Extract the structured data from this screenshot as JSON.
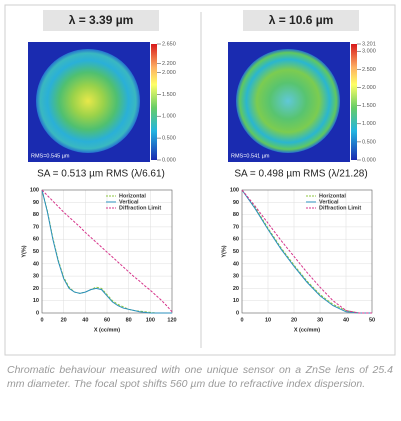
{
  "panels": [
    {
      "title": "λ = 3.39 µm",
      "rms_label": "RMS=0.545 µm",
      "sa": "SA = 0.513 µm RMS (λ/6.61)",
      "colorbar": {
        "lim": [
          0,
          2.65
        ],
        "ticks": [
          {
            "value": 2.65,
            "label": "2.650"
          },
          {
            "value": 2.2,
            "label": "2.200"
          },
          {
            "value": 2,
            "label": "2.000"
          },
          {
            "value": 1.5,
            "label": "1.500"
          },
          {
            "value": 1,
            "label": "1.000"
          },
          {
            "value": 0.5,
            "label": "0.500"
          },
          {
            "value": 0,
            "label": "0.000"
          }
        ]
      }
    },
    {
      "title": "λ = 10.6 µm",
      "rms_label": "RMS=0.541 µm",
      "sa": "SA = 0.498 µm RMS (λ/21.28)",
      "colorbar": {
        "lim": [
          0,
          3.201
        ],
        "ticks": [
          {
            "value": 3.201,
            "label": "3.201"
          },
          {
            "value": 3,
            "label": "3.000"
          },
          {
            "value": 2.5,
            "label": "2.500"
          },
          {
            "value": 2,
            "label": "2.000"
          },
          {
            "value": 1.5,
            "label": "1.500"
          },
          {
            "value": 1,
            "label": "1.000"
          },
          {
            "value": 0.5,
            "label": "0.500"
          },
          {
            "value": 0,
            "label": "0.000"
          }
        ]
      }
    }
  ],
  "chart_data": [
    {
      "type": "line",
      "x_label": "X (cc/mm)",
      "y_label": "Y(%)",
      "x": [
        0,
        5,
        10,
        15,
        20,
        25,
        30,
        35,
        40,
        45,
        50,
        55,
        60,
        65,
        70,
        75,
        80,
        85,
        90,
        95,
        100,
        105,
        110,
        115,
        120
      ],
      "xlim": [
        0,
        120
      ],
      "xticks": [
        0,
        20,
        40,
        60,
        80,
        100,
        120
      ],
      "ylim": [
        0,
        100
      ],
      "yticks": [
        0,
        10,
        20,
        30,
        40,
        50,
        60,
        70,
        80,
        90,
        100
      ],
      "grid": true,
      "legend": "upper right",
      "series": [
        {
          "name": "Horizontal",
          "color": "#8cc63f",
          "dash": true,
          "values": [
            100,
            83,
            61,
            43,
            29,
            21,
            17,
            16,
            17,
            19,
            21,
            20,
            15,
            10,
            7,
            5,
            3,
            2,
            1.5,
            1,
            0.5,
            0,
            0,
            0,
            0
          ]
        },
        {
          "name": "Vertical",
          "color": "#2a8fbd",
          "dash": false,
          "values": [
            100,
            82,
            60,
            42,
            28,
            20,
            17,
            16,
            17,
            19,
            20,
            19,
            14,
            9,
            6,
            4,
            3,
            2,
            1,
            0.5,
            0,
            0,
            0,
            0,
            0
          ]
        },
        {
          "name": "Diffraction Limit",
          "color": "#d6338a",
          "dash": true,
          "values": [
            100,
            95.5,
            91,
            86.5,
            82,
            78,
            74,
            70,
            65.5,
            61.5,
            57.5,
            53.5,
            49.5,
            45.5,
            41.5,
            37.5,
            33.5,
            29.5,
            26,
            22,
            18.5,
            14.5,
            10.5,
            6,
            1
          ]
        }
      ]
    },
    {
      "type": "line",
      "x_label": "X (cc/mm)",
      "y_label": "Y(%)",
      "x": [
        0,
        5,
        10,
        15,
        20,
        25,
        30,
        35,
        40,
        45,
        50
      ],
      "xlim": [
        0,
        50
      ],
      "xticks": [
        0,
        10,
        20,
        30,
        40,
        50
      ],
      "ylim": [
        0,
        100
      ],
      "yticks": [
        0,
        10,
        20,
        30,
        40,
        50,
        60,
        70,
        80,
        90,
        100
      ],
      "grid": true,
      "legend": "upper right",
      "series": [
        {
          "name": "Horizontal",
          "color": "#8cc63f",
          "dash": true,
          "values": [
            100,
            86,
            69,
            53,
            39,
            26,
            15,
            7,
            2,
            0,
            0
          ]
        },
        {
          "name": "Vertical",
          "color": "#2a8fbd",
          "dash": false,
          "values": [
            100,
            85,
            68,
            52,
            38,
            25,
            14,
            6,
            1,
            0,
            0
          ]
        },
        {
          "name": "Diffraction Limit",
          "color": "#d6338a",
          "dash": true,
          "values": [
            100,
            87,
            73,
            59,
            46,
            33,
            21,
            10,
            2,
            0,
            0
          ]
        }
      ]
    }
  ],
  "caption": "Chromatic behaviour measured with one unique sensor on a ZnSe lens of 25.4 mm diameter. The focal spot shifts 560 µm due to refractive index dispersion."
}
